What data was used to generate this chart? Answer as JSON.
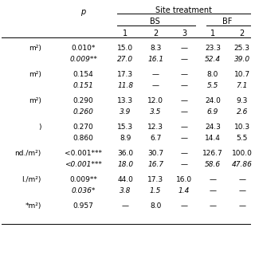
{
  "title": "Site treatment",
  "p_label": "p",
  "bs_label": "BS",
  "bf_label": "BF",
  "sub_cols_bs": [
    "1",
    "2",
    "3"
  ],
  "sub_cols_bf": [
    "1",
    "2"
  ],
  "rows": [
    {
      "label": "m²)",
      "p1": "0.010*",
      "p2": "0.009**",
      "bs1": [
        "15.0",
        "27.0"
      ],
      "bs2": [
        "8.3",
        "16.1"
      ],
      "bs3": [
        "—",
        "—"
      ],
      "bf1": [
        "23.3",
        "52.4"
      ],
      "bf2": [
        "25.3",
        "39.0"
      ]
    },
    {
      "label": "m²)",
      "p1": "0.154",
      "p2": "0.151",
      "bs1": [
        "17.3",
        "11.8"
      ],
      "bs2": [
        "—",
        "—"
      ],
      "bs3": [
        "—",
        "—"
      ],
      "bf1": [
        "8.0",
        "5.5"
      ],
      "bf2": [
        "10.7",
        "7.1"
      ]
    },
    {
      "label": "m²)",
      "p1": "0.290",
      "p2": "0.260",
      "bs1": [
        "13.3",
        "3.9"
      ],
      "bs2": [
        "12.0",
        "3.5"
      ],
      "bs3": [
        "—",
        "—"
      ],
      "bf1": [
        "24.0",
        "6.9"
      ],
      "bf2": [
        "9.3",
        "2.6"
      ]
    },
    {
      "label": ")",
      "p1": "0.270",
      "p2": "0.860",
      "bs1": [
        "15.3",
        "8.9"
      ],
      "bs2": [
        "12.3",
        "6.7"
      ],
      "bs3": [
        "—",
        "—"
      ],
      "bf1": [
        "24.3",
        "14.4"
      ],
      "bf2": [
        "10.3",
        "5.5"
      ]
    },
    {
      "label": "nd./m²)",
      "p1": "<0.001***",
      "p2": "<0.001***",
      "bs1": [
        "36.0",
        "18.0"
      ],
      "bs2": [
        "30.7",
        "16.7"
      ],
      "bs3": [
        "—",
        "—"
      ],
      "bf1": [
        "126.7",
        "58.6"
      ],
      "bf2": [
        "100.0",
        "47.86"
      ]
    },
    {
      "label": "l./m²)",
      "p1": "0.009**",
      "p2": "0.036*",
      "bs1": [
        "44.0",
        "3.8"
      ],
      "bs2": [
        "17.3",
        "1.5"
      ],
      "bs3": [
        "16.0",
        "1.4"
      ],
      "bf1": [
        "—",
        "—"
      ],
      "bf2": [
        "—",
        "—"
      ]
    },
    {
      "label": "*m²)",
      "p1": "0.957",
      "p2": "",
      "bs1": [
        "—",
        ""
      ],
      "bs2": [
        "8.0",
        ""
      ],
      "bs3": [
        "—",
        ""
      ],
      "bf1": [
        "—",
        ""
      ],
      "bf2": [
        "—",
        ""
      ]
    }
  ],
  "bg_color": "#ffffff",
  "text_color": "#000000",
  "font_size": 6.5,
  "header_font_size": 7.0,
  "italic_p2": [
    true,
    true,
    true,
    false,
    true,
    true,
    false
  ],
  "italic_second_row": [
    true,
    true,
    true,
    false,
    true,
    true,
    false
  ]
}
